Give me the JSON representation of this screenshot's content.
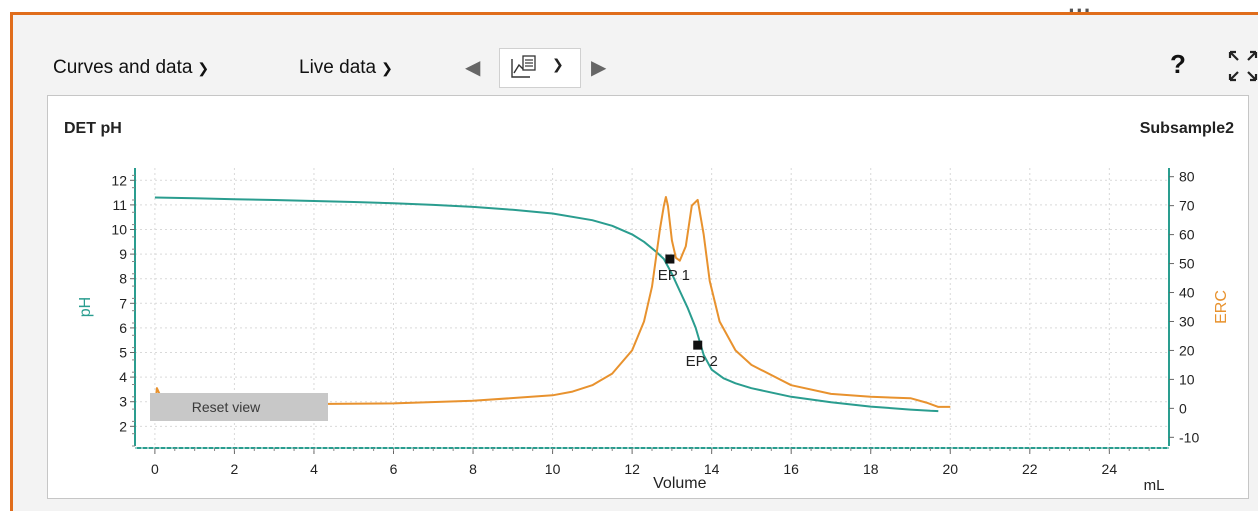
{
  "toolbar": {
    "curves_label": "Curves and data",
    "live_label": "Live data",
    "help_label": "?",
    "more_label": "..."
  },
  "chart": {
    "title_left": "DET pH",
    "title_right": "Subsample2",
    "reset_label": "Reset view"
  },
  "colors": {
    "accent_orange": "#e06d1b",
    "ph_color": "#2a9d8f",
    "erc_color": "#e8922e"
  },
  "chart_data": {
    "type": "line",
    "xlabel": "Volume",
    "xunit": "mL",
    "ylabel_left": "pH",
    "ylabel_right": "ERC",
    "xlim": [
      -0.5,
      25.5
    ],
    "ylim_left": [
      1.2,
      12.5
    ],
    "ylim_right": [
      -13,
      83
    ],
    "xticks": [
      0,
      2,
      4,
      6,
      8,
      10,
      12,
      14,
      16,
      18,
      20,
      22,
      24
    ],
    "yticks_left": [
      2,
      3,
      4,
      5,
      6,
      7,
      8,
      9,
      10,
      11,
      12
    ],
    "yticks_right": [
      -10,
      0,
      10,
      20,
      30,
      40,
      50,
      60,
      70,
      80
    ],
    "grid": true,
    "series": [
      {
        "name": "pH",
        "axis": "left",
        "x": [
          0,
          1,
          2,
          3,
          4,
          5,
          6,
          7,
          8,
          9,
          10,
          11,
          11.5,
          12,
          12.3,
          12.6,
          12.8,
          13.0,
          13.2,
          13.4,
          13.6,
          13.8,
          14.0,
          14.3,
          14.6,
          15,
          16,
          17,
          18,
          19,
          19.5,
          19.7
        ],
        "y": [
          11.3,
          11.27,
          11.23,
          11.2,
          11.16,
          11.12,
          11.07,
          11.0,
          10.92,
          10.8,
          10.65,
          10.38,
          10.15,
          9.8,
          9.5,
          9.1,
          8.8,
          8.2,
          7.5,
          6.8,
          6.0,
          4.9,
          4.3,
          3.95,
          3.75,
          3.55,
          3.2,
          2.98,
          2.8,
          2.68,
          2.63,
          2.62
        ]
      },
      {
        "name": "ERC",
        "axis": "right",
        "x": [
          0,
          0.05,
          0.15,
          0.6,
          2,
          4,
          6,
          8,
          10,
          10.5,
          11,
          11.5,
          12,
          12.3,
          12.5,
          12.7,
          12.8,
          12.85,
          12.9,
          13.0,
          13.1,
          13.2,
          13.35,
          13.5,
          13.65,
          13.8,
          13.95,
          14.2,
          14.6,
          15,
          16,
          17,
          18,
          19,
          19.4,
          19.7,
          20
        ],
        "y": [
          0,
          7,
          4,
          2,
          1.5,
          1.5,
          1.7,
          2.6,
          4.5,
          5.8,
          8,
          12,
          20,
          30,
          42,
          62,
          70,
          73,
          70,
          58,
          52,
          51,
          56,
          70,
          72,
          60,
          44,
          30,
          20,
          15,
          8,
          5,
          4,
          3.5,
          2,
          0.5,
          0.5
        ]
      }
    ],
    "annotations": [
      {
        "label": "EP 1",
        "x": 12.95,
        "y": 8.8
      },
      {
        "label": "EP 2",
        "x": 13.65,
        "y": 5.3
      }
    ]
  }
}
